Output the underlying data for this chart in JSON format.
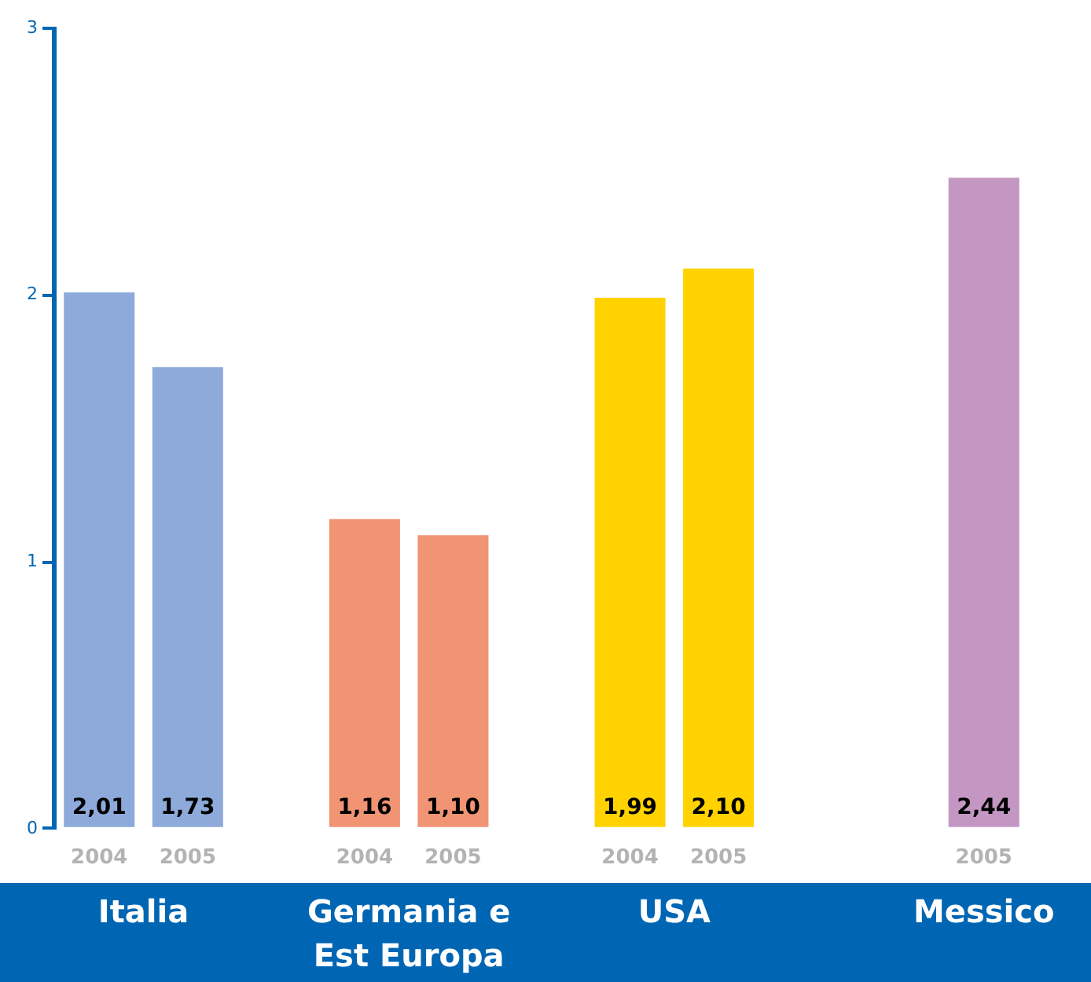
{
  "chart_data": {
    "type": "bar",
    "categories": [
      "2004",
      "2005",
      null,
      "2004",
      "2005",
      null,
      "2004",
      "2005",
      null,
      null,
      "2005"
    ],
    "values": [
      2.01,
      1.73,
      null,
      1.16,
      1.1,
      null,
      1.99,
      2.1,
      null,
      null,
      2.44
    ],
    "colors": [
      "#8eaadb",
      "#8eaadb",
      null,
      "#f09474",
      "#f09474",
      null,
      "#ffd200",
      "#ffd200",
      null,
      null,
      "#c497c3"
    ],
    "value_labels": [
      "2,01",
      "1,73",
      null,
      "1,16",
      "1,10",
      null,
      "1,99",
      "2,10",
      null,
      null,
      "2,44"
    ],
    "ylim": [
      0,
      3
    ],
    "yticks": [
      0,
      1,
      2,
      3
    ],
    "grid": false,
    "legend": false,
    "annotations": [
      "Italia",
      "Germania e Est Europa",
      "USA",
      "Messico"
    ]
  }
}
